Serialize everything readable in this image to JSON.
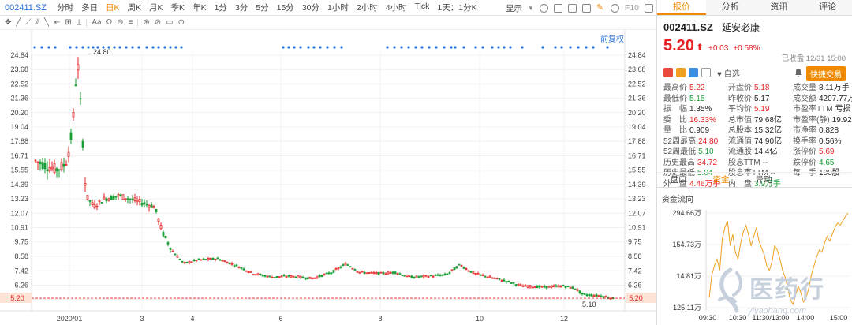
{
  "toolbar": {
    "code": "002411.SZ",
    "periods": [
      "分时",
      "多日",
      "日K",
      "周K",
      "月K",
      "季K",
      "年K",
      "1分",
      "3分",
      "5分",
      "15分",
      "30分",
      "1小时",
      "2小时",
      "4小时",
      "Tick",
      "1天：1分K"
    ],
    "active_period": "日K",
    "display_label": "显示",
    "f10_label": "F10",
    "restore_label": "前复权"
  },
  "toolbar2": {
    "items": [
      "✥",
      "╱",
      "⟋",
      "⫽",
      "╲",
      "⇤",
      "⊞",
      "⟂",
      "Aa",
      "Ω",
      "⊖",
      "≡",
      "⊛",
      "⊘",
      "▭",
      "⊙"
    ]
  },
  "chart_data": {
    "type": "candlestick",
    "title": "",
    "y_ticks": [
      24.84,
      23.68,
      22.52,
      21.36,
      20.2,
      19.04,
      17.88,
      16.71,
      15.55,
      14.39,
      13.23,
      12.07,
      10.91,
      9.75,
      8.58,
      7.42,
      6.26,
      5.1
    ],
    "ylim": [
      4.95,
      24.84
    ],
    "x_labels": [
      "2020/01",
      "3",
      "4",
      "6",
      "8",
      "10",
      "12"
    ],
    "current_price_label": "5.20",
    "high_annotation": "24.80",
    "low_annotation": "5.10",
    "approx_close_path": [
      {
        "x": "2019/11",
        "y": 16.3
      },
      {
        "x": "2019/12",
        "y": 15.6
      },
      {
        "x": "2019/12 end",
        "y": 16.0
      },
      {
        "x": "2020/01 early",
        "y": 17.5
      },
      {
        "x": "2020/01 mid",
        "y": 21.0
      },
      {
        "x": "2020/01 peak",
        "y": 24.8
      },
      {
        "x": "2020/02",
        "y": 13.0
      },
      {
        "x": "2020/03",
        "y": 13.4
      },
      {
        "x": "2020/03 end",
        "y": 12.0
      },
      {
        "x": "2020/04",
        "y": 8.0
      },
      {
        "x": "2020/05",
        "y": 8.0
      },
      {
        "x": "2020/06",
        "y": 6.8
      },
      {
        "x": "2020/07",
        "y": 7.2
      },
      {
        "x": "2020/08",
        "y": 8.0
      },
      {
        "x": "2020/09",
        "y": 6.9
      },
      {
        "x": "2020/10",
        "y": 7.2
      },
      {
        "x": "2020/11",
        "y": 6.2
      },
      {
        "x": "2020/12",
        "y": 5.7
      },
      {
        "x": "2020/12 end",
        "y": 5.2
      }
    ]
  },
  "right_panel": {
    "tabs": [
      "报价",
      "分析",
      "资讯",
      "评论"
    ],
    "active_tab": "报价",
    "stock_code": "002411.SZ",
    "stock_name": "延安必康",
    "price": "5.20",
    "change": "+0.03",
    "change_pct": "+0.58%",
    "status": "已收盘 12/31 15:00",
    "watch_label": "自选",
    "quick_trade": "快捷交易",
    "quotes": [
      {
        "label": "最高价",
        "value": "5.22",
        "color": "red"
      },
      {
        "label": "开盘价",
        "value": "5.18",
        "color": "red"
      },
      {
        "label": "成交量",
        "value": "8.11万手",
        "color": "dark"
      },
      {
        "label": "最低价",
        "value": "5.15",
        "color": "green"
      },
      {
        "label": "昨收价",
        "value": "5.17",
        "color": "dark"
      },
      {
        "label": "成交额",
        "value": "4207.77万",
        "color": "dark"
      },
      {
        "label": "振　幅",
        "value": "1.35%",
        "color": "dark"
      },
      {
        "label": "平均价",
        "value": "5.19",
        "color": "red"
      },
      {
        "label": "市盈率TTM",
        "value": "亏损",
        "color": "dark"
      },
      {
        "label": "委　比",
        "value": "16.33%",
        "color": "red"
      },
      {
        "label": "总市值",
        "value": "79.68亿",
        "color": "dark"
      },
      {
        "label": "市盈率(静)",
        "value": "19.923",
        "color": "dark"
      },
      {
        "label": "量　比",
        "value": "0.909",
        "color": "dark"
      },
      {
        "label": "总股本",
        "value": "15.32亿",
        "color": "dark"
      },
      {
        "label": "市净率",
        "value": "0.828",
        "color": "dark"
      },
      {
        "label": "52周最高",
        "value": "24.80",
        "color": "red"
      },
      {
        "label": "流通值",
        "value": "74.90亿",
        "color": "dark"
      },
      {
        "label": "换手率",
        "value": "0.56%",
        "color": "dark"
      },
      {
        "label": "52周最低",
        "value": "5.10",
        "color": "green"
      },
      {
        "label": "流通股",
        "value": "14.4亿",
        "color": "dark"
      },
      {
        "label": "涨停价",
        "value": "5.69",
        "color": "red"
      },
      {
        "label": "历史最高",
        "value": "34.72",
        "color": "red"
      },
      {
        "label": "股息TTM",
        "value": "--",
        "color": "dark"
      },
      {
        "label": "跌停价",
        "value": "4.65",
        "color": "green"
      },
      {
        "label": "历史最低",
        "value": "5.04",
        "color": "green"
      },
      {
        "label": "股息率TTM",
        "value": "--",
        "color": "dark"
      },
      {
        "label": "每　手",
        "value": "100股",
        "color": "dark"
      },
      {
        "label": "外　盘",
        "value": "4.46万手",
        "color": "red"
      },
      {
        "label": "内　盘",
        "value": "3.9万手",
        "color": "green"
      },
      {
        "label": "",
        "value": "",
        "color": "dark"
      }
    ],
    "subtabs": [
      "盘口",
      "资金",
      "异动"
    ],
    "active_subtab": "资金",
    "flow_title": "资金流向",
    "flow_chart": {
      "type": "line",
      "y_ticks": [
        "294.66万",
        "154.73万",
        "14.81万",
        "-125.11万"
      ],
      "ylim": [
        -125.11,
        294.66
      ],
      "x_labels": [
        "09:30",
        "10:30",
        "11:30/13:00",
        "14:00",
        "15:00"
      ],
      "values": [
        -80,
        20,
        60,
        90,
        40,
        180,
        230,
        260,
        150,
        200,
        120,
        90,
        160,
        210,
        240,
        200,
        150,
        190,
        230,
        170,
        140,
        110,
        60,
        40,
        80,
        150,
        130,
        90,
        40,
        10,
        -40,
        -90,
        -110,
        -70,
        -30,
        -60,
        -100,
        -80,
        -40,
        20,
        60,
        100,
        130,
        120,
        160,
        190,
        170,
        200,
        230,
        250,
        240,
        260,
        280,
        294
      ]
    }
  },
  "watermark": {
    "text": "医药行",
    "url": "yiyaohang.com"
  }
}
